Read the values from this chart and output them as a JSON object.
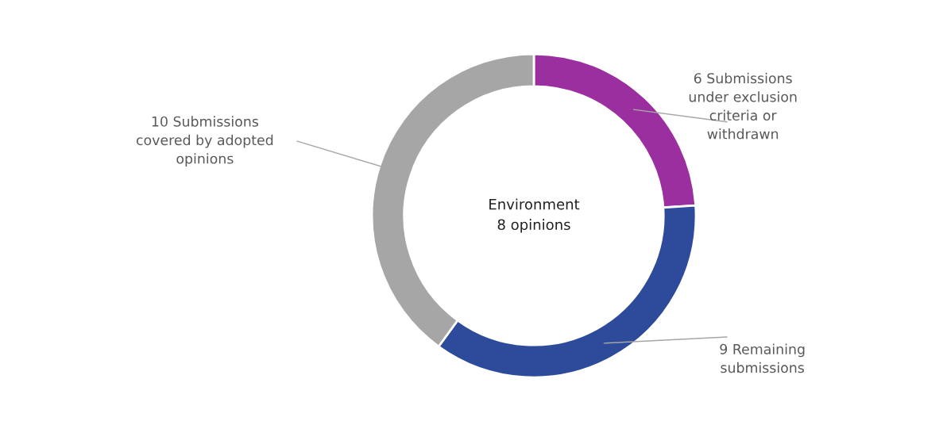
{
  "chart_data": {
    "type": "donut",
    "categories": [
      "6 Submissions\nunder exclusion\ncriteria or\nwithdrawn",
      "9 Remaining\nsubmissions",
      "10 Submissions\ncovered by adopted\nopinions"
    ],
    "values": [
      6,
      9,
      10
    ],
    "colors": [
      "#9b2f9f",
      "#2e4a9a",
      "#a6a6a6"
    ],
    "annotations": [
      "Environment\n8 opinions"
    ]
  }
}
